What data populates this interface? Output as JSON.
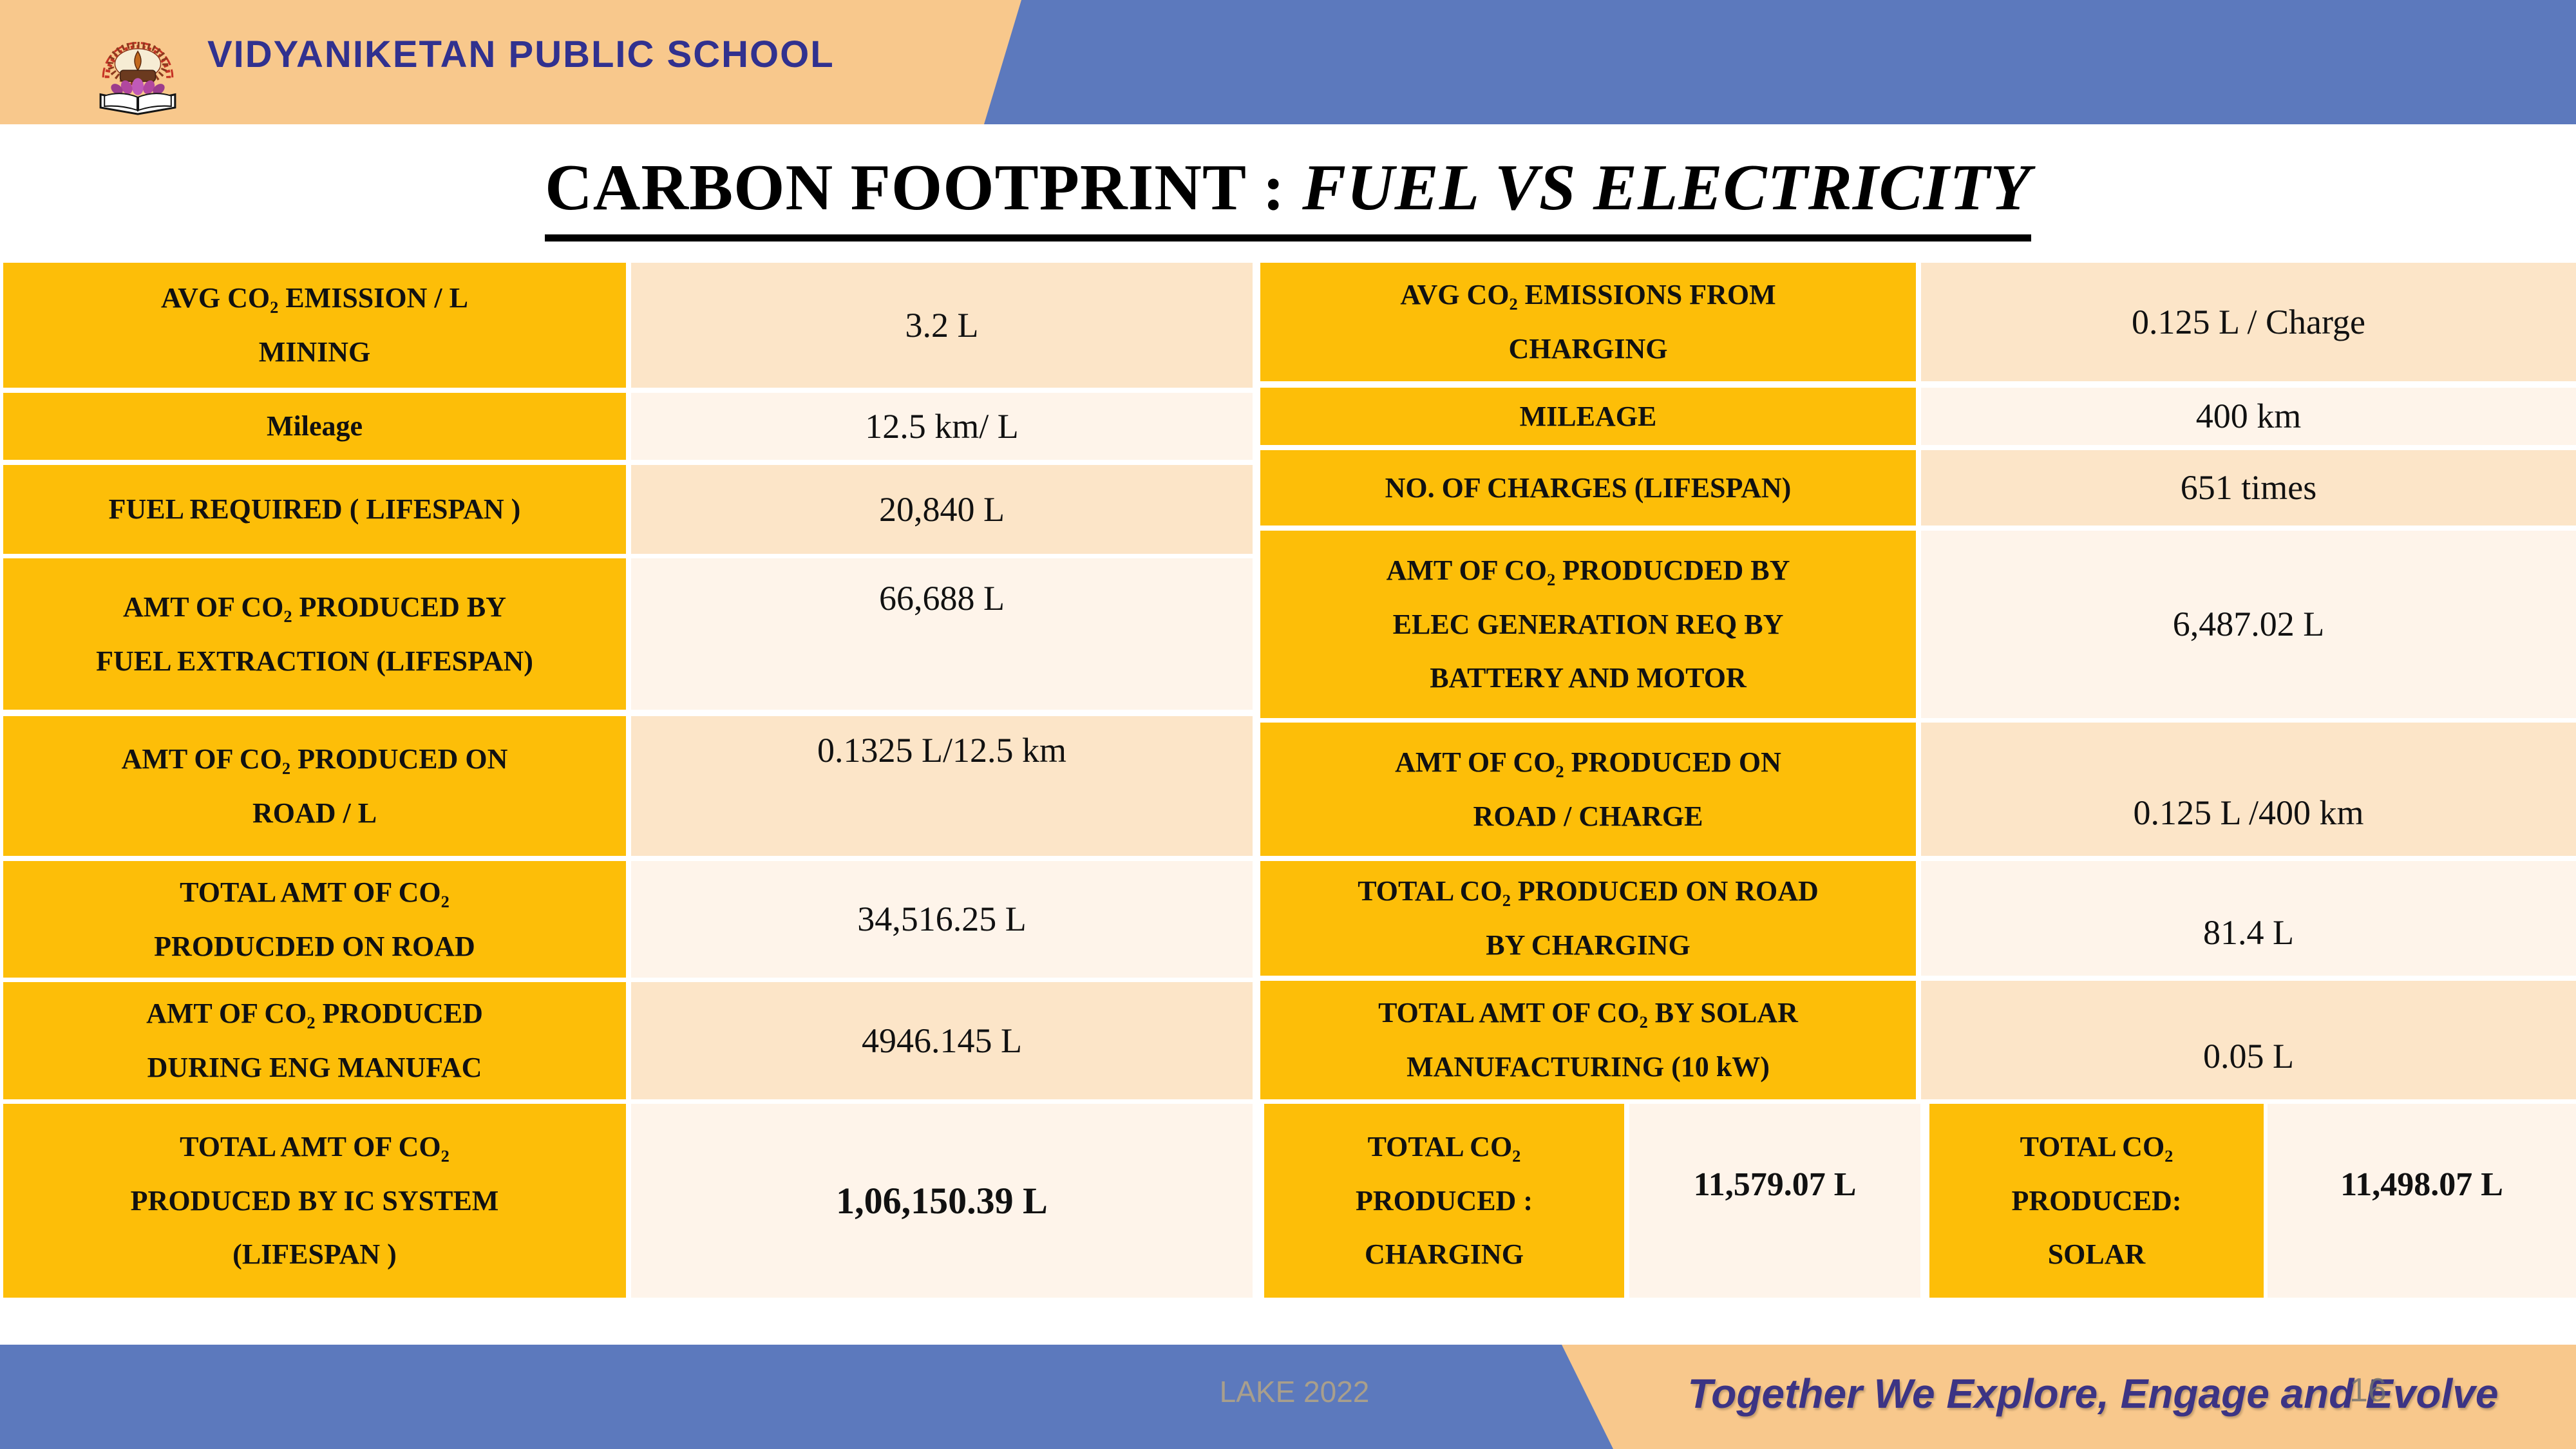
{
  "header": {
    "school_name": "VIDYANIKETAN PUBLIC SCHOOL",
    "crest_motto": "तमसो मा ज्योतिर्गमय"
  },
  "title": {
    "text": "CARBON FOOTPRINT : ",
    "emphasis": "FUEL VS ELECTRICITY"
  },
  "fuel_table": {
    "rows": [
      {
        "label": "AVG CO₂ EMISSION / L\nMINING",
        "value": "3.2 L"
      },
      {
        "label": "Mileage",
        "value": "12.5 km/ L"
      },
      {
        "label": "FUEL REQUIRED ( LIFESPAN )",
        "value": "20,840 L"
      },
      {
        "label": "AMT OF CO₂ PRODUCED BY\nFUEL EXTRACTION (LIFESPAN)",
        "value": "66,688 L"
      },
      {
        "label": "AMT OF CO₂ PRODUCED ON\nROAD / L",
        "value": "0.1325 L/12.5 km"
      },
      {
        "label": "TOTAL AMT OF CO₂\nPRODUCDED ON ROAD",
        "value": "34,516.25 L"
      },
      {
        "label": "AMT OF CO₂ PRODUCED\nDURING ENG MANUFAC",
        "value": "4946.145 L"
      },
      {
        "label": "TOTAL AMT OF CO₂\nPRODUCED BY IC SYSTEM\n(LIFESPAN )",
        "value": "1,06,150.39 L"
      }
    ]
  },
  "electricity_table": {
    "rows": [
      {
        "label": "AVG CO₂ EMISSIONS FROM\nCHARGING",
        "value": "0.125 L / Charge"
      },
      {
        "label": "MILEAGE",
        "value": "400 km"
      },
      {
        "label": "NO. OF CHARGES (LIFESPAN)",
        "value": "651 times"
      },
      {
        "label": "AMT OF CO₂ PRODUCDED BY\nELEC GENERATION REQ BY\nBATTERY AND MOTOR",
        "value": "6,487.02 L"
      },
      {
        "label": "AMT OF CO₂ PRODUCED ON\nROAD / CHARGE",
        "value": "0.125 L /400 km"
      },
      {
        "label": "TOTAL CO₂ PRODUCED ON ROAD\nBY CHARGING",
        "value": "81.4 L"
      },
      {
        "label": "TOTAL AMT OF CO₂ BY SOLAR\nMANUFACTURING (10 kW)",
        "value": "0.05 L"
      }
    ],
    "totals": [
      {
        "label": "TOTAL CO₂\nPRODUCED :\nCHARGING",
        "value": "11,579.07 L"
      },
      {
        "label": "TOTAL CO₂\nPRODUCED:\nSOLAR",
        "value": "11,498.07 L"
      }
    ]
  },
  "footer": {
    "event": "LAKE 2022",
    "motto": "Together We Explore, Engage and Evolve",
    "page_number": "16"
  },
  "colors": {
    "gold": "#FDBE08",
    "cell_peach": "#FCE5C8",
    "cell_cream": "#FEF4EA",
    "band_peach": "#F8C88C",
    "band_blue": "#5C79BD",
    "school_blue": "#31318F",
    "motto_purple": "#3C3484",
    "crest_red": "#C63426"
  }
}
